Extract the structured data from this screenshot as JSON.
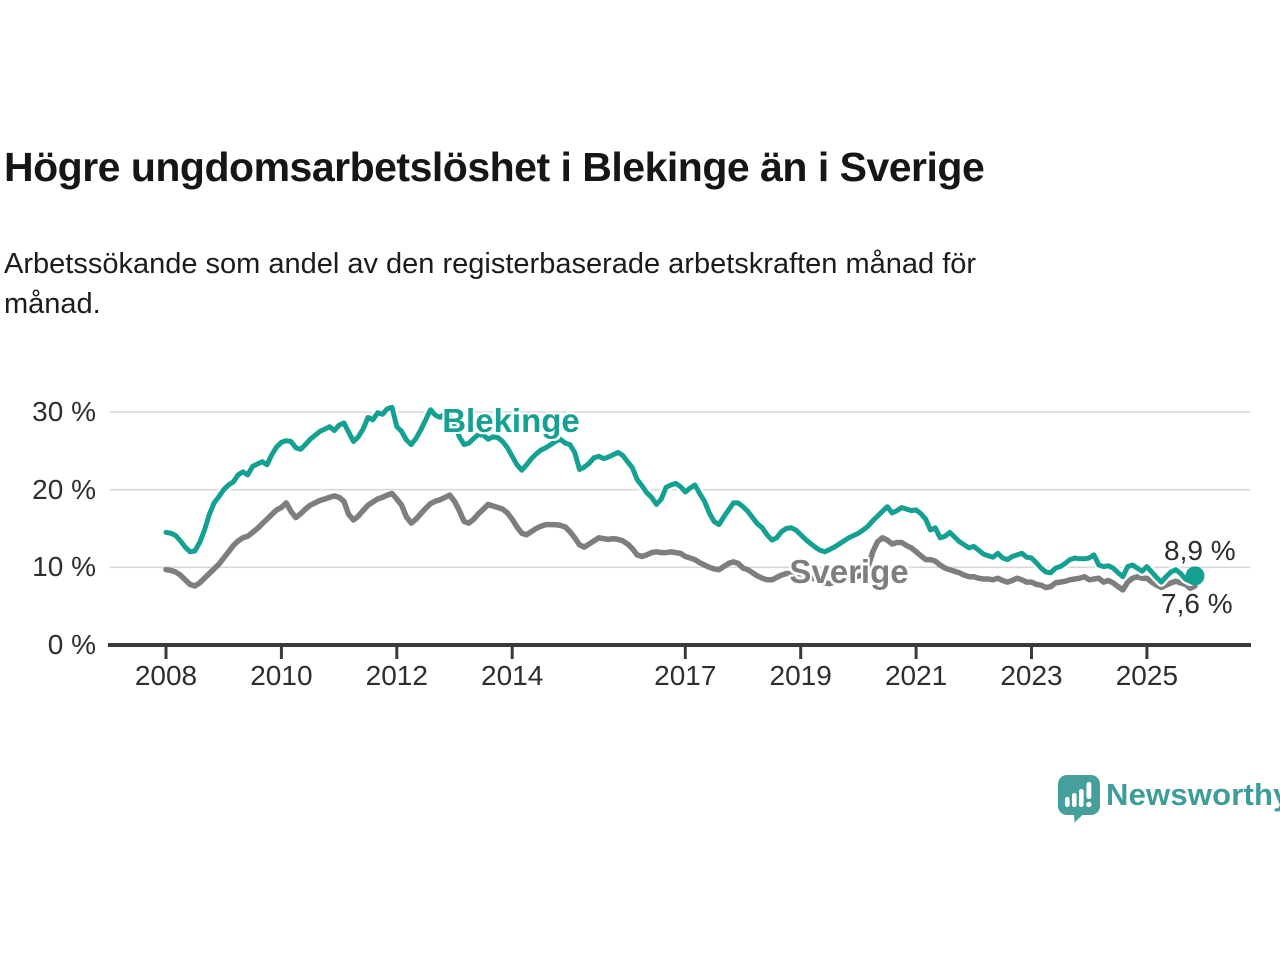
{
  "header": {
    "title": "Högre ungdomsarbetslöshet i Blekinge än i Sverige",
    "subtitle_line1": "Arbetssökande som andel av den registerbaserade arbetskraften månad för",
    "subtitle_line2": "månad."
  },
  "footer": {
    "brand": "Newsworthy"
  },
  "chart_data": {
    "type": "line",
    "title": "",
    "xlabel": "",
    "ylabel": "",
    "unit": "%",
    "start_year": 2008,
    "start_month": 1,
    "months_per_point": 1,
    "x_ticks": [
      2008,
      2010,
      2012,
      2014,
      2017,
      2019,
      2021,
      2023,
      2025
    ],
    "y_ticks": [
      {
        "value": 0,
        "label": "0 %"
      },
      {
        "value": 10,
        "label": "10 %"
      },
      {
        "value": 20,
        "label": "20 %"
      },
      {
        "value": 30,
        "label": "30 %"
      }
    ],
    "ylim": [
      0,
      32
    ],
    "grid": "horizontal",
    "legend_position": "inline-labels",
    "colors": {
      "axis": "#3a3a3a",
      "gridline": "#d8d8d8",
      "tick_text": "#2e2e2e",
      "blekinge": "#14a192",
      "sverige": "#7d7e80",
      "logo": "#45a09c"
    },
    "series": [
      {
        "name": "Blekinge",
        "color": "#14a192",
        "end_label": "8,9 %",
        "end_value": 8.9,
        "values": [
          14.5,
          14.4,
          14.1,
          13.4,
          12.6,
          12.0,
          12.1,
          13.2,
          14.8,
          16.8,
          18.3,
          19.1,
          20.0,
          20.6,
          21.0,
          21.9,
          22.3,
          21.9,
          23.0,
          23.3,
          23.6,
          23.2,
          24.5,
          25.5,
          26.1,
          26.3,
          26.2,
          25.4,
          25.2,
          25.8,
          26.5,
          27.0,
          27.5,
          27.8,
          28.1,
          27.6,
          28.3,
          28.6,
          27.4,
          26.2,
          26.8,
          27.8,
          29.3,
          29.0,
          29.9,
          29.7,
          30.4,
          30.6,
          28.1,
          27.5,
          26.4,
          25.8,
          26.6,
          27.7,
          29.0,
          30.3,
          29.6,
          29.3,
          29.8,
          29.4,
          28.5,
          26.8,
          25.8,
          26.0,
          26.6,
          27.1,
          27.0,
          26.5,
          26.8,
          26.7,
          26.2,
          25.4,
          24.3,
          23.2,
          22.5,
          23.2,
          24.0,
          24.6,
          25.1,
          25.4,
          25.8,
          26.2,
          26.5,
          26.0,
          25.8,
          24.8,
          22.6,
          22.9,
          23.4,
          24.1,
          24.3,
          24.0,
          24.2,
          24.5,
          24.8,
          24.4,
          23.6,
          22.8,
          21.3,
          20.5,
          19.6,
          19.0,
          18.1,
          18.8,
          20.3,
          20.6,
          20.8,
          20.4,
          19.7,
          20.2,
          20.6,
          19.5,
          18.5,
          17.0,
          15.9,
          15.5,
          16.5,
          17.4,
          18.3,
          18.3,
          17.8,
          17.2,
          16.4,
          15.6,
          15.1,
          14.2,
          13.5,
          13.8,
          14.6,
          15.0,
          15.1,
          14.8,
          14.2,
          13.6,
          13.1,
          12.6,
          12.2,
          12.0,
          12.3,
          12.6,
          13.0,
          13.4,
          13.8,
          14.1,
          14.4,
          14.8,
          15.3,
          16.0,
          16.6,
          17.2,
          17.8,
          17.0,
          17.3,
          17.7,
          17.5,
          17.3,
          17.4,
          16.9,
          16.2,
          14.8,
          15.1,
          13.8,
          14.0,
          14.5,
          13.9,
          13.3,
          12.9,
          12.5,
          12.7,
          12.2,
          11.7,
          11.5,
          11.3,
          11.8,
          11.2,
          11.0,
          11.4,
          11.6,
          11.8,
          11.3,
          11.2,
          10.6,
          9.9,
          9.4,
          9.3,
          9.9,
          10.1,
          10.5,
          11.0,
          11.2,
          11.1,
          11.1,
          11.2,
          11.6,
          10.3,
          10.1,
          10.2,
          9.9,
          9.3,
          8.8,
          10.1,
          10.3,
          9.9,
          9.5,
          10.1,
          9.4,
          8.7,
          8.1,
          8.8,
          9.4,
          9.7,
          9.2,
          8.5,
          8.2,
          8.9
        ]
      },
      {
        "name": "Sverige",
        "color": "#7d7e80",
        "end_label": "7,6 %",
        "end_value": 7.6,
        "values": [
          9.7,
          9.6,
          9.4,
          9.0,
          8.4,
          7.8,
          7.6,
          8.0,
          8.6,
          9.2,
          9.8,
          10.4,
          11.2,
          12.0,
          12.8,
          13.4,
          13.8,
          14.0,
          14.5,
          15.0,
          15.6,
          16.2,
          16.8,
          17.4,
          17.7,
          18.3,
          17.2,
          16.4,
          16.9,
          17.5,
          18.0,
          18.3,
          18.6,
          18.8,
          19.0,
          19.2,
          19.0,
          18.5,
          16.8,
          16.1,
          16.6,
          17.3,
          18.0,
          18.4,
          18.8,
          19.0,
          19.3,
          19.5,
          18.8,
          18.0,
          16.5,
          15.7,
          16.2,
          16.9,
          17.6,
          18.2,
          18.5,
          18.7,
          19.0,
          19.3,
          18.5,
          17.3,
          15.9,
          15.7,
          16.2,
          16.9,
          17.5,
          18.1,
          17.9,
          17.7,
          17.5,
          17.0,
          16.2,
          15.2,
          14.4,
          14.2,
          14.6,
          15.0,
          15.3,
          15.5,
          15.5,
          15.5,
          15.4,
          15.2,
          14.6,
          13.8,
          12.9,
          12.6,
          13.0,
          13.4,
          13.8,
          13.7,
          13.6,
          13.7,
          13.6,
          13.4,
          13.0,
          12.4,
          11.6,
          11.4,
          11.6,
          11.9,
          12.0,
          11.9,
          11.9,
          12.0,
          11.9,
          11.8,
          11.4,
          11.2,
          11.0,
          10.6,
          10.3,
          10.0,
          9.8,
          9.7,
          10.1,
          10.5,
          10.7,
          10.5,
          9.9,
          9.7,
          9.3,
          8.9,
          8.6,
          8.4,
          8.4,
          8.7,
          9.0,
          9.2,
          9.2,
          9.1,
          9.2,
          9.0,
          8.7,
          8.5,
          8.2,
          8.0,
          7.9,
          8.1,
          8.3,
          8.4,
          8.6,
          8.8,
          8.9,
          9.0,
          10.0,
          12.0,
          13.3,
          13.8,
          13.5,
          13.0,
          13.2,
          13.2,
          12.8,
          12.5,
          12.0,
          11.5,
          11.0,
          11.0,
          10.8,
          10.3,
          9.9,
          9.7,
          9.5,
          9.3,
          9.0,
          8.8,
          8.8,
          8.6,
          8.5,
          8.5,
          8.4,
          8.6,
          8.3,
          8.1,
          8.3,
          8.6,
          8.4,
          8.1,
          8.1,
          7.8,
          7.7,
          7.4,
          7.5,
          8.0,
          8.1,
          8.2,
          8.4,
          8.5,
          8.6,
          8.8,
          8.4,
          8.5,
          8.6,
          8.1,
          8.3,
          8.0,
          7.5,
          7.1,
          8.1,
          8.6,
          8.8,
          8.6,
          8.6,
          8.1,
          7.7,
          7.4,
          7.7,
          8.0,
          8.2,
          8.0,
          7.8,
          7.3,
          7.6
        ]
      }
    ]
  }
}
